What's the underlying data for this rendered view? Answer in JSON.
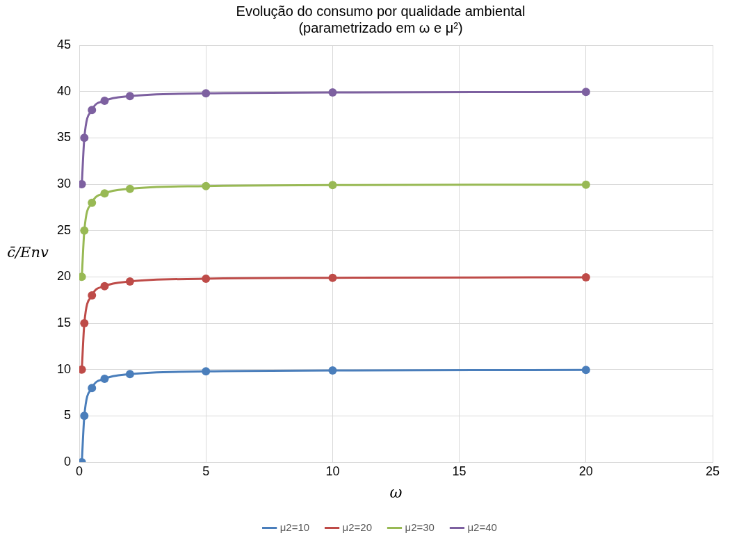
{
  "chart_data": {
    "type": "line",
    "title": "Evolução do consumo por qualidade ambiental\n(parametrizado em ω e μ²)",
    "xlabel": "ω",
    "ylabel": "c̄/Env",
    "x": [
      0.1,
      0.2,
      0.5,
      1,
      2,
      5,
      10,
      20
    ],
    "series": [
      {
        "name": "μ2=10",
        "color": "#4a7ebb",
        "values": [
          0,
          5,
          8,
          9,
          9.5,
          9.8,
          9.9,
          9.95
        ]
      },
      {
        "name": "μ2=20",
        "color": "#be4b48",
        "values": [
          10,
          15,
          18,
          19,
          19.5,
          19.8,
          19.9,
          19.95
        ]
      },
      {
        "name": "μ2=30",
        "color": "#98b954",
        "values": [
          20,
          25,
          28,
          29,
          29.5,
          29.8,
          29.9,
          29.95
        ]
      },
      {
        "name": "μ2=40",
        "color": "#7d60a0",
        "values": [
          30,
          35,
          38,
          39,
          39.5,
          39.8,
          39.9,
          39.95
        ]
      }
    ],
    "xlim": [
      0,
      25
    ],
    "xticks": [
      0,
      5,
      10,
      15,
      20,
      25
    ],
    "ylim": [
      0,
      45
    ],
    "yticks": [
      0,
      5,
      10,
      15,
      20,
      25,
      30,
      35,
      40,
      45
    ],
    "grid": true,
    "legend": "bottom",
    "marker": "circle",
    "line_style": "solid"
  }
}
